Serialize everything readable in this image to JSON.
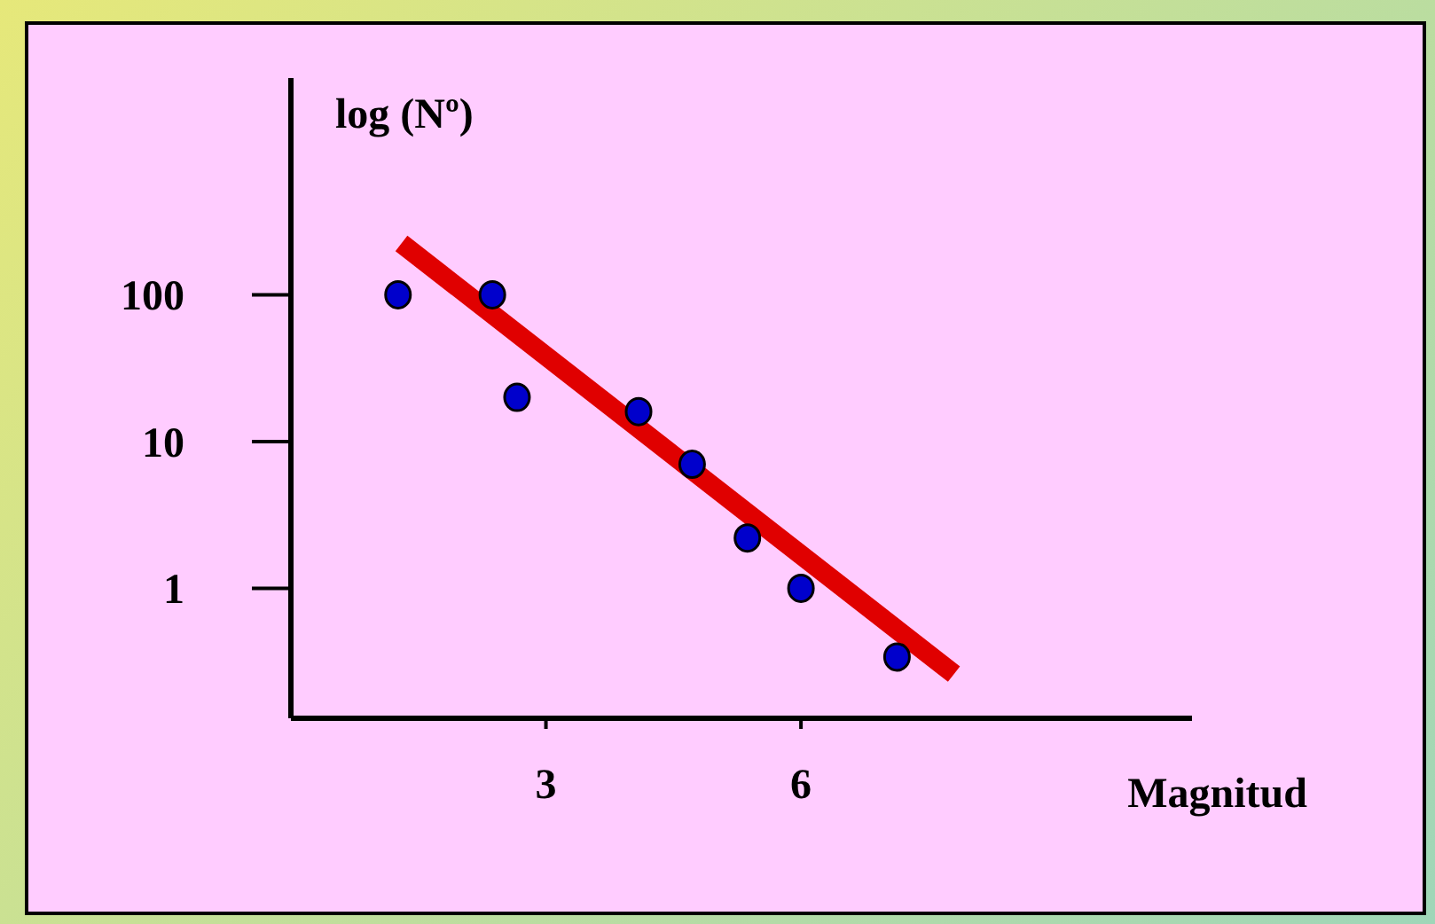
{
  "chart_data": {
    "type": "scatter",
    "xlabel": "Magnitud",
    "ylabel": "log (Nº)",
    "log": "y",
    "xlim": [
      0,
      10.6
    ],
    "xticks": [
      3,
      6
    ],
    "ylim": [
      0.13,
      3000
    ],
    "yticks": [
      1,
      10,
      100
    ],
    "marker": "circle",
    "series": [
      {
        "color": "#0000cc",
        "x": [
          1.26,
          2.37,
          2.66,
          4.09,
          4.72,
          5.37,
          6.0,
          7.13
        ],
        "values": [
          100,
          100,
          20,
          16,
          7,
          2.2,
          1,
          0.34
        ]
      },
      {
        "type": "line",
        "color": "#e00000",
        "marker": "none",
        "x": [
          1.3,
          7.8
        ],
        "values": [
          224,
          0.26
        ]
      }
    ]
  }
}
